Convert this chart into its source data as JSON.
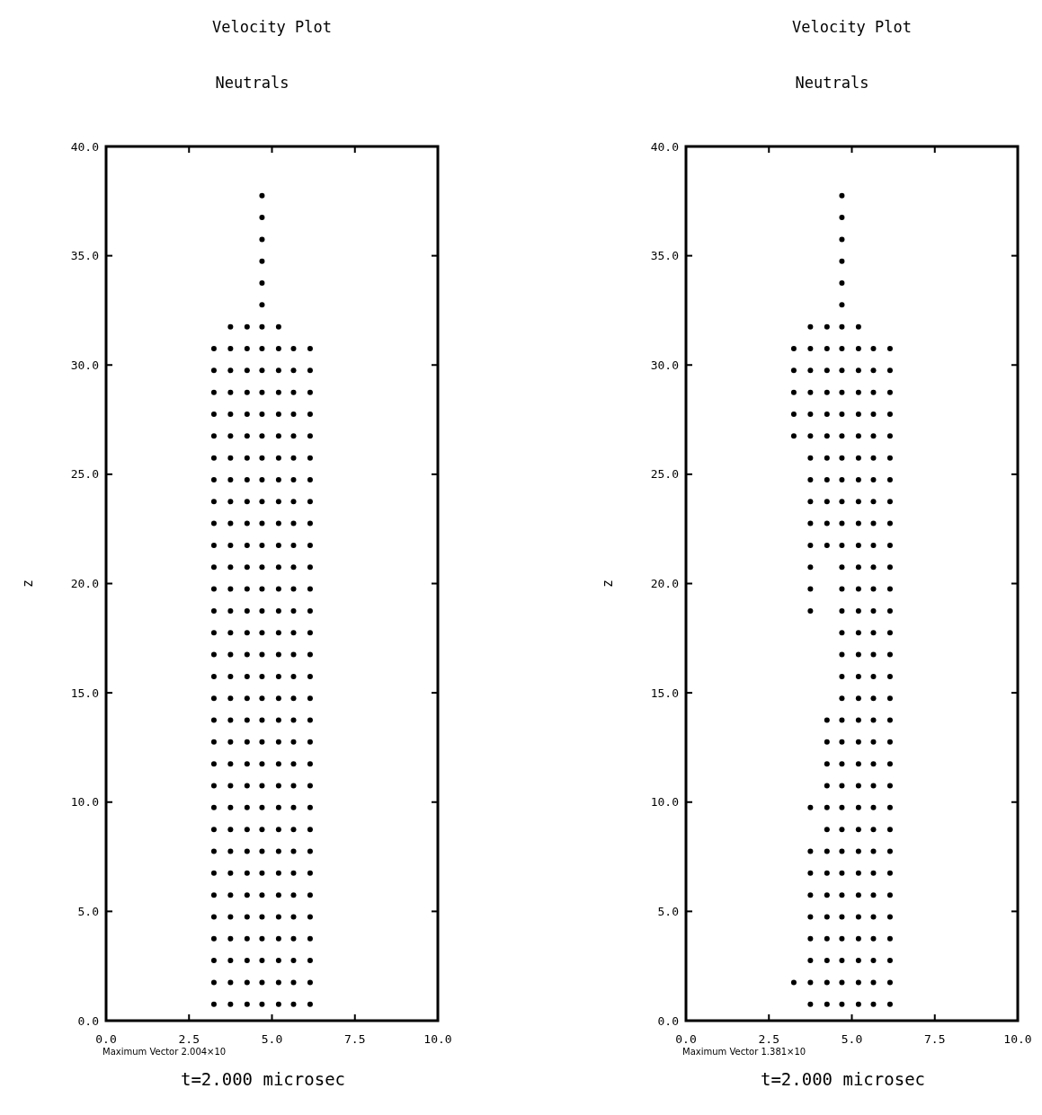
{
  "chart_data": [
    {
      "type": "scatter",
      "title": "Velocity Plot",
      "subtitle": "Neutrals",
      "ylabel": "z",
      "xlabel": "t=2.000 microsec",
      "annotations": [
        "Maximum Vector 2.004×10"
      ],
      "marker": "circle",
      "xlim": [
        0,
        10
      ],
      "ylim": [
        0,
        40
      ],
      "xticks": [
        {
          "value": 0,
          "label": "0.0"
        },
        {
          "value": 2.5,
          "label": "2.5"
        },
        {
          "value": 5,
          "label": "5.0"
        },
        {
          "value": 7.5,
          "label": "7.5"
        },
        {
          "value": 10,
          "label": "10.0"
        }
      ],
      "yticks": [
        {
          "value": 0,
          "label": "0.0"
        },
        {
          "value": 5,
          "label": "5.0"
        },
        {
          "value": 10,
          "label": "10.0"
        },
        {
          "value": 15,
          "label": "15.0"
        },
        {
          "value": 20,
          "label": "20.0"
        },
        {
          "value": 25,
          "label": "25.0"
        },
        {
          "value": 30,
          "label": "30.0"
        },
        {
          "value": 35,
          "label": "35.0"
        },
        {
          "value": 40,
          "label": "40.0"
        }
      ],
      "series": [
        {
          "color": "#000000",
          "x": [
            3.25,
            3.25,
            3.25,
            3.25,
            3.25,
            3.25,
            3.25,
            3.25,
            3.25,
            3.25,
            3.25,
            3.25,
            3.25,
            3.25,
            3.25,
            3.25,
            3.25,
            3.25,
            3.25,
            3.25,
            3.25,
            3.25,
            3.25,
            3.25,
            3.25,
            3.25,
            3.25,
            3.25,
            3.25,
            3.25,
            3.25
          ],
          "values": [
            0.75,
            1.75,
            2.75,
            3.75,
            4.75,
            5.75,
            6.75,
            7.75,
            8.75,
            9.75,
            10.75,
            11.75,
            12.75,
            13.75,
            14.75,
            15.75,
            16.75,
            17.75,
            18.75,
            19.75,
            20.75,
            21.75,
            22.75,
            23.75,
            24.75,
            25.75,
            26.75,
            27.75,
            28.75,
            29.75,
            30.75
          ]
        },
        {
          "color": "#000000",
          "x": [
            3.75,
            3.75,
            3.75,
            3.75,
            3.75,
            3.75,
            3.75,
            3.75,
            3.75,
            3.75,
            3.75,
            3.75,
            3.75,
            3.75,
            3.75,
            3.75,
            3.75,
            3.75,
            3.75,
            3.75,
            3.75,
            3.75,
            3.75,
            3.75,
            3.75,
            3.75,
            3.75,
            3.75,
            3.75,
            3.75,
            3.75,
            3.75
          ],
          "values": [
            0.75,
            1.75,
            2.75,
            3.75,
            4.75,
            5.75,
            6.75,
            7.75,
            8.75,
            9.75,
            10.75,
            11.75,
            12.75,
            13.75,
            14.75,
            15.75,
            16.75,
            17.75,
            18.75,
            19.75,
            20.75,
            21.75,
            22.75,
            23.75,
            24.75,
            25.75,
            26.75,
            27.75,
            28.75,
            29.75,
            30.75,
            31.75
          ]
        },
        {
          "color": "#000000",
          "x": [
            4.25,
            4.25,
            4.25,
            4.25,
            4.25,
            4.25,
            4.25,
            4.25,
            4.25,
            4.25,
            4.25,
            4.25,
            4.25,
            4.25,
            4.25,
            4.25,
            4.25,
            4.25,
            4.25,
            4.25,
            4.25,
            4.25,
            4.25,
            4.25,
            4.25,
            4.25,
            4.25,
            4.25,
            4.25,
            4.25,
            4.25,
            4.25
          ],
          "values": [
            0.75,
            1.75,
            2.75,
            3.75,
            4.75,
            5.75,
            6.75,
            7.75,
            8.75,
            9.75,
            10.75,
            11.75,
            12.75,
            13.75,
            14.75,
            15.75,
            16.75,
            17.75,
            18.75,
            19.75,
            20.75,
            21.75,
            22.75,
            23.75,
            24.75,
            25.75,
            26.75,
            27.75,
            28.75,
            29.75,
            30.75,
            31.75
          ]
        },
        {
          "color": "#000000",
          "x": [
            4.7,
            4.7,
            4.7,
            4.7,
            4.7,
            4.7,
            4.7,
            4.7,
            4.7,
            4.7,
            4.7,
            4.7,
            4.7,
            4.7,
            4.7,
            4.7,
            4.7,
            4.7,
            4.7,
            4.7,
            4.7,
            4.7,
            4.7,
            4.7,
            4.7,
            4.7,
            4.7,
            4.7,
            4.7,
            4.7,
            4.7,
            4.7,
            4.7,
            4.7,
            4.7,
            4.7,
            4.7,
            4.7
          ],
          "values": [
            0.75,
            1.75,
            2.75,
            3.75,
            4.75,
            5.75,
            6.75,
            7.75,
            8.75,
            9.75,
            10.75,
            11.75,
            12.75,
            13.75,
            14.75,
            15.75,
            16.75,
            17.75,
            18.75,
            19.75,
            20.75,
            21.75,
            22.75,
            23.75,
            24.75,
            25.75,
            26.75,
            27.75,
            28.75,
            29.75,
            30.75,
            31.75,
            32.75,
            33.75,
            34.75,
            35.75,
            36.75,
            37.75
          ]
        },
        {
          "color": "#000000",
          "x": [
            5.2,
            5.2,
            5.2,
            5.2,
            5.2,
            5.2,
            5.2,
            5.2,
            5.2,
            5.2,
            5.2,
            5.2,
            5.2,
            5.2,
            5.2,
            5.2,
            5.2,
            5.2,
            5.2,
            5.2,
            5.2,
            5.2,
            5.2,
            5.2,
            5.2,
            5.2,
            5.2,
            5.2,
            5.2,
            5.2,
            5.2,
            5.2
          ],
          "values": [
            0.75,
            1.75,
            2.75,
            3.75,
            4.75,
            5.75,
            6.75,
            7.75,
            8.75,
            9.75,
            10.75,
            11.75,
            12.75,
            13.75,
            14.75,
            15.75,
            16.75,
            17.75,
            18.75,
            19.75,
            20.75,
            21.75,
            22.75,
            23.75,
            24.75,
            25.75,
            26.75,
            27.75,
            28.75,
            29.75,
            30.75,
            31.75
          ]
        },
        {
          "color": "#000000",
          "x": [
            5.65,
            5.65,
            5.65,
            5.65,
            5.65,
            5.65,
            5.65,
            5.65,
            5.65,
            5.65,
            5.65,
            5.65,
            5.65,
            5.65,
            5.65,
            5.65,
            5.65,
            5.65,
            5.65,
            5.65,
            5.65,
            5.65,
            5.65,
            5.65,
            5.65,
            5.65,
            5.65,
            5.65,
            5.65,
            5.65,
            5.65
          ],
          "values": [
            0.75,
            1.75,
            2.75,
            3.75,
            4.75,
            5.75,
            6.75,
            7.75,
            8.75,
            9.75,
            10.75,
            11.75,
            12.75,
            13.75,
            14.75,
            15.75,
            16.75,
            17.75,
            18.75,
            19.75,
            20.75,
            21.75,
            22.75,
            23.75,
            24.75,
            25.75,
            26.75,
            27.75,
            28.75,
            29.75,
            30.75
          ]
        },
        {
          "color": "#000000",
          "x": [
            6.15,
            6.15,
            6.15,
            6.15,
            6.15,
            6.15,
            6.15,
            6.15,
            6.15,
            6.15,
            6.15,
            6.15,
            6.15,
            6.15,
            6.15,
            6.15,
            6.15,
            6.15,
            6.15,
            6.15,
            6.15,
            6.15,
            6.15,
            6.15,
            6.15,
            6.15,
            6.15,
            6.15,
            6.15,
            6.15,
            6.15
          ],
          "values": [
            0.75,
            1.75,
            2.75,
            3.75,
            4.75,
            5.75,
            6.75,
            7.75,
            8.75,
            9.75,
            10.75,
            11.75,
            12.75,
            13.75,
            14.75,
            15.75,
            16.75,
            17.75,
            18.75,
            19.75,
            20.75,
            21.75,
            22.75,
            23.75,
            24.75,
            25.75,
            26.75,
            27.75,
            28.75,
            29.75,
            30.75
          ]
        }
      ]
    },
    {
      "type": "scatter",
      "title": "Velocity Plot",
      "subtitle": "Neutrals",
      "ylabel": "z",
      "xlabel": "t=2.000 microsec",
      "annotations": [
        "Maximum Vector 1.381×10"
      ],
      "marker": "circle",
      "xlim": [
        0,
        10
      ],
      "ylim": [
        0,
        40
      ],
      "xticks": [
        {
          "value": 0,
          "label": "0.0"
        },
        {
          "value": 2.5,
          "label": "2.5"
        },
        {
          "value": 5,
          "label": "5.0"
        },
        {
          "value": 7.5,
          "label": "7.5"
        },
        {
          "value": 10,
          "label": "10.0"
        }
      ],
      "yticks": [
        {
          "value": 0,
          "label": "0.0"
        },
        {
          "value": 5,
          "label": "5.0"
        },
        {
          "value": 10,
          "label": "10.0"
        },
        {
          "value": 15,
          "label": "15.0"
        },
        {
          "value": 20,
          "label": "20.0"
        },
        {
          "value": 25,
          "label": "25.0"
        },
        {
          "value": 30,
          "label": "30.0"
        },
        {
          "value": 35,
          "label": "35.0"
        },
        {
          "value": 40,
          "label": "40.0"
        }
      ],
      "series": [
        {
          "color": "#000000",
          "x": [
            3.25,
            3.25,
            3.25,
            3.25,
            3.25,
            3.25
          ],
          "values": [
            1.75,
            26.75,
            27.75,
            28.75,
            29.75,
            30.75
          ]
        },
        {
          "color": "#000000",
          "x": [
            3.75,
            3.75,
            3.75,
            3.75,
            3.75,
            3.75,
            3.75,
            3.75,
            3.75,
            3.75,
            3.75,
            3.75,
            3.75,
            3.75,
            3.75,
            3.75,
            3.75,
            3.75,
            3.75,
            3.75,
            3.75,
            3.75,
            3.75
          ],
          "values": [
            0.75,
            1.75,
            2.75,
            3.75,
            4.75,
            5.75,
            6.75,
            7.75,
            9.75,
            18.75,
            19.75,
            20.75,
            21.75,
            22.75,
            23.75,
            24.75,
            25.75,
            26.75,
            27.75,
            28.75,
            29.75,
            30.75,
            31.75
          ]
        },
        {
          "color": "#000000",
          "x": [
            4.25,
            4.25,
            4.25,
            4.25,
            4.25,
            4.25,
            4.25,
            4.25,
            4.25,
            4.25,
            4.25,
            4.25,
            4.25,
            4.25,
            4.25,
            4.25,
            4.25,
            4.25,
            4.25,
            4.25,
            4.25,
            4.25,
            4.25,
            4.25,
            4.25
          ],
          "values": [
            0.75,
            1.75,
            2.75,
            3.75,
            4.75,
            5.75,
            6.75,
            7.75,
            8.75,
            9.75,
            10.75,
            11.75,
            12.75,
            13.75,
            21.75,
            22.75,
            23.75,
            24.75,
            25.75,
            26.75,
            27.75,
            28.75,
            29.75,
            30.75,
            31.75
          ]
        },
        {
          "color": "#000000",
          "x": [
            4.7,
            4.7,
            4.7,
            4.7,
            4.7,
            4.7,
            4.7,
            4.7,
            4.7,
            4.7,
            4.7,
            4.7,
            4.7,
            4.7,
            4.7,
            4.7,
            4.7,
            4.7,
            4.7,
            4.7,
            4.7,
            4.7,
            4.7,
            4.7,
            4.7,
            4.7,
            4.7,
            4.7,
            4.7,
            4.7,
            4.7,
            4.7,
            4.7,
            4.7,
            4.7,
            4.7,
            4.7,
            4.7
          ],
          "values": [
            0.75,
            1.75,
            2.75,
            3.75,
            4.75,
            5.75,
            6.75,
            7.75,
            8.75,
            9.75,
            10.75,
            11.75,
            12.75,
            13.75,
            14.75,
            15.75,
            16.75,
            17.75,
            18.75,
            19.75,
            20.75,
            21.75,
            22.75,
            23.75,
            24.75,
            25.75,
            26.75,
            27.75,
            28.75,
            29.75,
            30.75,
            31.75,
            32.75,
            33.75,
            34.75,
            35.75,
            36.75,
            37.75
          ]
        },
        {
          "color": "#000000",
          "x": [
            5.2,
            5.2,
            5.2,
            5.2,
            5.2,
            5.2,
            5.2,
            5.2,
            5.2,
            5.2,
            5.2,
            5.2,
            5.2,
            5.2,
            5.2,
            5.2,
            5.2,
            5.2,
            5.2,
            5.2,
            5.2,
            5.2,
            5.2,
            5.2,
            5.2,
            5.2,
            5.2,
            5.2,
            5.2,
            5.2,
            5.2,
            5.2
          ],
          "values": [
            0.75,
            1.75,
            2.75,
            3.75,
            4.75,
            5.75,
            6.75,
            7.75,
            8.75,
            9.75,
            10.75,
            11.75,
            12.75,
            13.75,
            14.75,
            15.75,
            16.75,
            17.75,
            18.75,
            19.75,
            20.75,
            21.75,
            22.75,
            23.75,
            24.75,
            25.75,
            26.75,
            27.75,
            28.75,
            29.75,
            30.75,
            31.75
          ]
        },
        {
          "color": "#000000",
          "x": [
            5.65,
            5.65,
            5.65,
            5.65,
            5.65,
            5.65,
            5.65,
            5.65,
            5.65,
            5.65,
            5.65,
            5.65,
            5.65,
            5.65,
            5.65,
            5.65,
            5.65,
            5.65,
            5.65,
            5.65,
            5.65,
            5.65,
            5.65,
            5.65,
            5.65,
            5.65,
            5.65,
            5.65,
            5.65,
            5.65,
            5.65
          ],
          "values": [
            0.75,
            1.75,
            2.75,
            3.75,
            4.75,
            5.75,
            6.75,
            7.75,
            8.75,
            9.75,
            10.75,
            11.75,
            12.75,
            13.75,
            14.75,
            15.75,
            16.75,
            17.75,
            18.75,
            19.75,
            20.75,
            21.75,
            22.75,
            23.75,
            24.75,
            25.75,
            26.75,
            27.75,
            28.75,
            29.75,
            30.75
          ]
        },
        {
          "color": "#000000",
          "x": [
            6.15,
            6.15,
            6.15,
            6.15,
            6.15,
            6.15,
            6.15,
            6.15,
            6.15,
            6.15,
            6.15,
            6.15,
            6.15,
            6.15,
            6.15,
            6.15,
            6.15,
            6.15,
            6.15,
            6.15,
            6.15,
            6.15,
            6.15,
            6.15,
            6.15,
            6.15,
            6.15,
            6.15,
            6.15,
            6.15,
            6.15
          ],
          "values": [
            0.75,
            1.75,
            2.75,
            3.75,
            4.75,
            5.75,
            6.75,
            7.75,
            8.75,
            9.75,
            10.75,
            11.75,
            12.75,
            13.75,
            14.75,
            15.75,
            16.75,
            17.75,
            18.75,
            19.75,
            20.75,
            21.75,
            22.75,
            23.75,
            24.75,
            25.75,
            26.75,
            27.75,
            28.75,
            29.75,
            30.75
          ]
        }
      ]
    }
  ]
}
